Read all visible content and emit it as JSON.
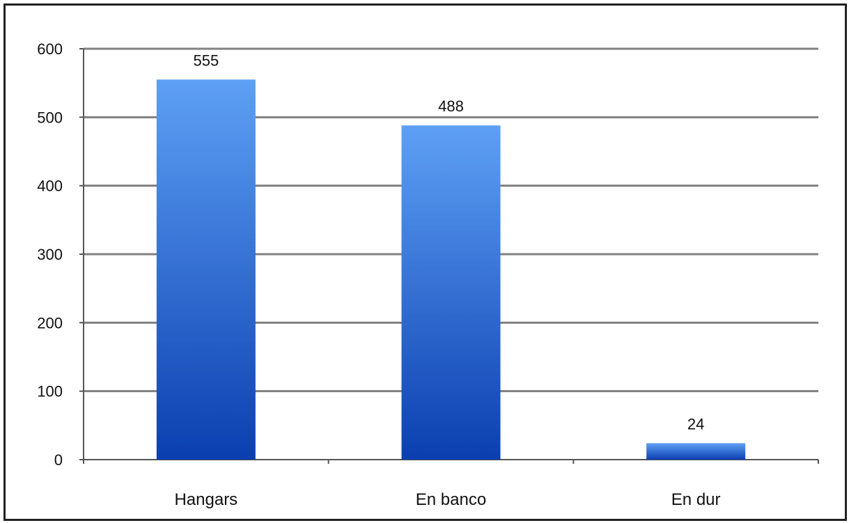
{
  "chart_data": {
    "type": "bar",
    "categories": [
      "Hangars",
      "En banco",
      "En dur"
    ],
    "values": [
      555,
      488,
      24
    ],
    "data_labels": [
      "555",
      "488",
      "24"
    ],
    "y_ticks": [
      0,
      100,
      200,
      300,
      400,
      500,
      600
    ],
    "y_tick_labels": [
      "0",
      "100",
      "200",
      "300",
      "400",
      "500",
      "600"
    ],
    "ylim": [
      0,
      600
    ],
    "grid": true,
    "legend": "none",
    "title": "",
    "xlabel": "",
    "ylabel": "",
    "colors": {
      "bar_top": "#5ea0f5",
      "bar_bottom": "#0b3fb0",
      "grid": "#808080"
    }
  }
}
